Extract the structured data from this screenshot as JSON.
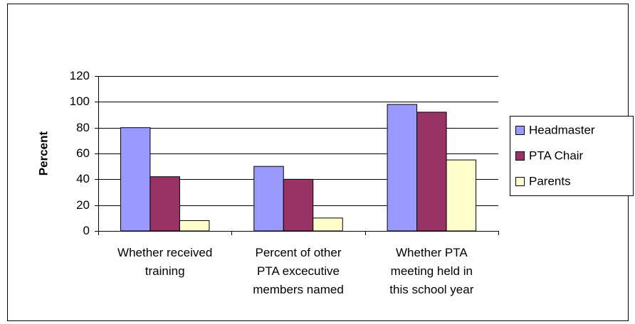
{
  "chart_data": {
    "type": "bar",
    "categories": [
      "Whether received training",
      "Percent of other PTA excecutive members named",
      "Whether PTA meeting held in this school year"
    ],
    "series": [
      {
        "name": "Headmaster",
        "color": "#9999ff",
        "values": [
          80,
          50,
          98
        ]
      },
      {
        "name": "PTA Chair",
        "color": "#993366",
        "values": [
          42,
          40,
          92
        ]
      },
      {
        "name": "Parents",
        "color": "#ffffcc",
        "values": [
          8,
          10,
          55
        ]
      }
    ],
    "y_label": "Percent",
    "ylim": [
      0,
      120
    ],
    "yticks": [
      0,
      20,
      40,
      60,
      80,
      100,
      120
    ],
    "grid": true,
    "legend": "right"
  }
}
